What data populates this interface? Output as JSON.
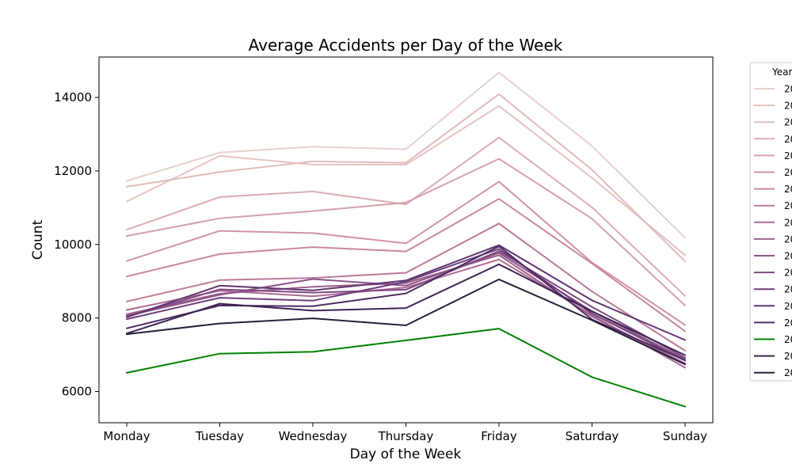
{
  "chart_data": {
    "type": "line",
    "title": "Average Accidents per Day of the Week",
    "xlabel": "Day of the Week",
    "ylabel": "Count",
    "categories": [
      "Monday",
      "Tuesday",
      "Wednesday",
      "Thursday",
      "Friday",
      "Saturday",
      "Sunday"
    ],
    "ylim": [
      5150,
      15100
    ],
    "yticks": [
      6000,
      8000,
      10000,
      12000,
      14000
    ],
    "ytick_labels": [
      "6000",
      "8000",
      "10000",
      "12000",
      "14000"
    ],
    "grid": false,
    "legend": {
      "title": "Year",
      "placement": "outside-right",
      "entries": [
        "20",
        "20",
        "20",
        "20",
        "20",
        "20",
        "20",
        "20",
        "20",
        "20",
        "20",
        "20",
        "20",
        "20",
        "20",
        "20",
        "20",
        "20"
      ]
    },
    "series": [
      {
        "color": "#e9d0cd",
        "values": [
          11730,
          12500,
          12660,
          12590,
          14680,
          12680,
          10180
        ]
      },
      {
        "color": "#e5c4c1",
        "values": [
          11170,
          12410,
          12170,
          12170,
          13770,
          11810,
          9710
        ]
      },
      {
        "color": "#e1bcbc",
        "values": [
          11570,
          11970,
          12260,
          12220,
          14090,
          12030,
          9540
        ]
      },
      {
        "color": "#dcadb2",
        "values": [
          10400,
          11290,
          11440,
          11090,
          12910,
          11010,
          8600
        ]
      },
      {
        "color": "#d5a1ab",
        "values": [
          10230,
          10710,
          10910,
          11140,
          12330,
          10700,
          8340
        ]
      },
      {
        "color": "#cf94a6",
        "values": [
          9550,
          10370,
          10310,
          10030,
          11710,
          9510,
          7810
        ]
      },
      {
        "color": "#c888a0",
        "values": [
          9130,
          9740,
          9930,
          9810,
          11240,
          9480,
          7640
        ]
      },
      {
        "color": "#bc799a",
        "values": [
          8450,
          9030,
          9090,
          9230,
          10570,
          8720,
          7110
        ]
      },
      {
        "color": "#ad6b93",
        "values": [
          8220,
          8740,
          8590,
          8830,
          9590,
          8080,
          6650
        ]
      },
      {
        "color": "#9c5f8c",
        "values": [
          8100,
          8660,
          8850,
          8950,
          9710,
          8040,
          6760
        ]
      },
      {
        "color": "#8e5488",
        "values": [
          8060,
          8630,
          9060,
          8880,
          9770,
          8180,
          6880
        ]
      },
      {
        "color": "#7f4883",
        "values": [
          8030,
          8780,
          8690,
          8770,
          9820,
          8300,
          6920
        ]
      },
      {
        "color": "#6e3e7b",
        "values": [
          7970,
          8550,
          8470,
          8990,
          9880,
          8120,
          6840
        ]
      },
      {
        "color": "#5f3570",
        "values": [
          8020,
          8880,
          8750,
          9020,
          9980,
          8480,
          7400
        ]
      },
      {
        "color": "#4e2c63",
        "values": [
          7720,
          8340,
          8320,
          8670,
          9950,
          7960,
          6850
        ]
      },
      {
        "color": "#008000",
        "values": [
          6510,
          7030,
          7080,
          7390,
          7710,
          6390,
          5590
        ]
      },
      {
        "color": "#3a2452",
        "values": [
          7580,
          8390,
          8200,
          8270,
          9460,
          8180,
          6990
        ]
      },
      {
        "color": "#2b1d3c",
        "values": [
          7560,
          7850,
          7990,
          7800,
          9050,
          7940,
          6740
        ]
      }
    ]
  }
}
